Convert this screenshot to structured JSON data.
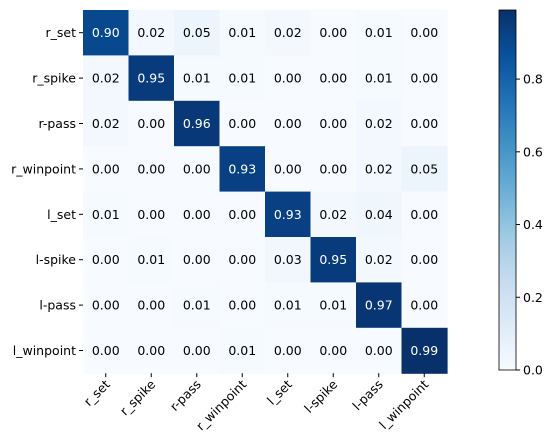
{
  "chart_data": {
    "type": "heatmap",
    "title": "",
    "xlabel": "",
    "ylabel": "",
    "x_categories": [
      "r_set",
      "r_spike",
      "r-pass",
      "r_winpoint",
      "l_set",
      "l-spike",
      "l-pass",
      "l_winpoint"
    ],
    "y_categories": [
      "r_set",
      "r_spike",
      "r-pass",
      "r_winpoint",
      "l_set",
      "l-spike",
      "l-pass",
      "l_winpoint"
    ],
    "values": [
      [
        0.9,
        0.02,
        0.05,
        0.01,
        0.02,
        0.0,
        0.01,
        0.0
      ],
      [
        0.02,
        0.95,
        0.01,
        0.01,
        0.0,
        0.0,
        0.01,
        0.0
      ],
      [
        0.02,
        0.0,
        0.96,
        0.0,
        0.0,
        0.0,
        0.02,
        0.0
      ],
      [
        0.0,
        0.0,
        0.0,
        0.93,
        0.0,
        0.0,
        0.02,
        0.05
      ],
      [
        0.01,
        0.0,
        0.0,
        0.0,
        0.93,
        0.02,
        0.04,
        0.0
      ],
      [
        0.0,
        0.01,
        0.0,
        0.0,
        0.03,
        0.95,
        0.02,
        0.0
      ],
      [
        0.0,
        0.0,
        0.01,
        0.0,
        0.01,
        0.01,
        0.97,
        0.0
      ],
      [
        0.0,
        0.0,
        0.0,
        0.01,
        0.0,
        0.0,
        0.0,
        0.99
      ]
    ],
    "value_format": "0.00",
    "colormap": "Blues",
    "colorbar": {
      "range": [
        0.0,
        0.99
      ],
      "ticks": [
        0.0,
        0.2,
        0.4,
        0.6,
        0.8
      ],
      "tick_labels": [
        "0.0",
        "0.2",
        "0.4",
        "0.6",
        "0.8"
      ]
    },
    "x_tick_rotation": "45-degree",
    "grid": false,
    "legend": "colorbar-right"
  },
  "colors": {
    "cmap_low": "#f7fbff",
    "cmap_mid": "#6baed6",
    "cmap_high": "#08306b",
    "text_dark": "#000000",
    "text_light": "#ffffff"
  }
}
